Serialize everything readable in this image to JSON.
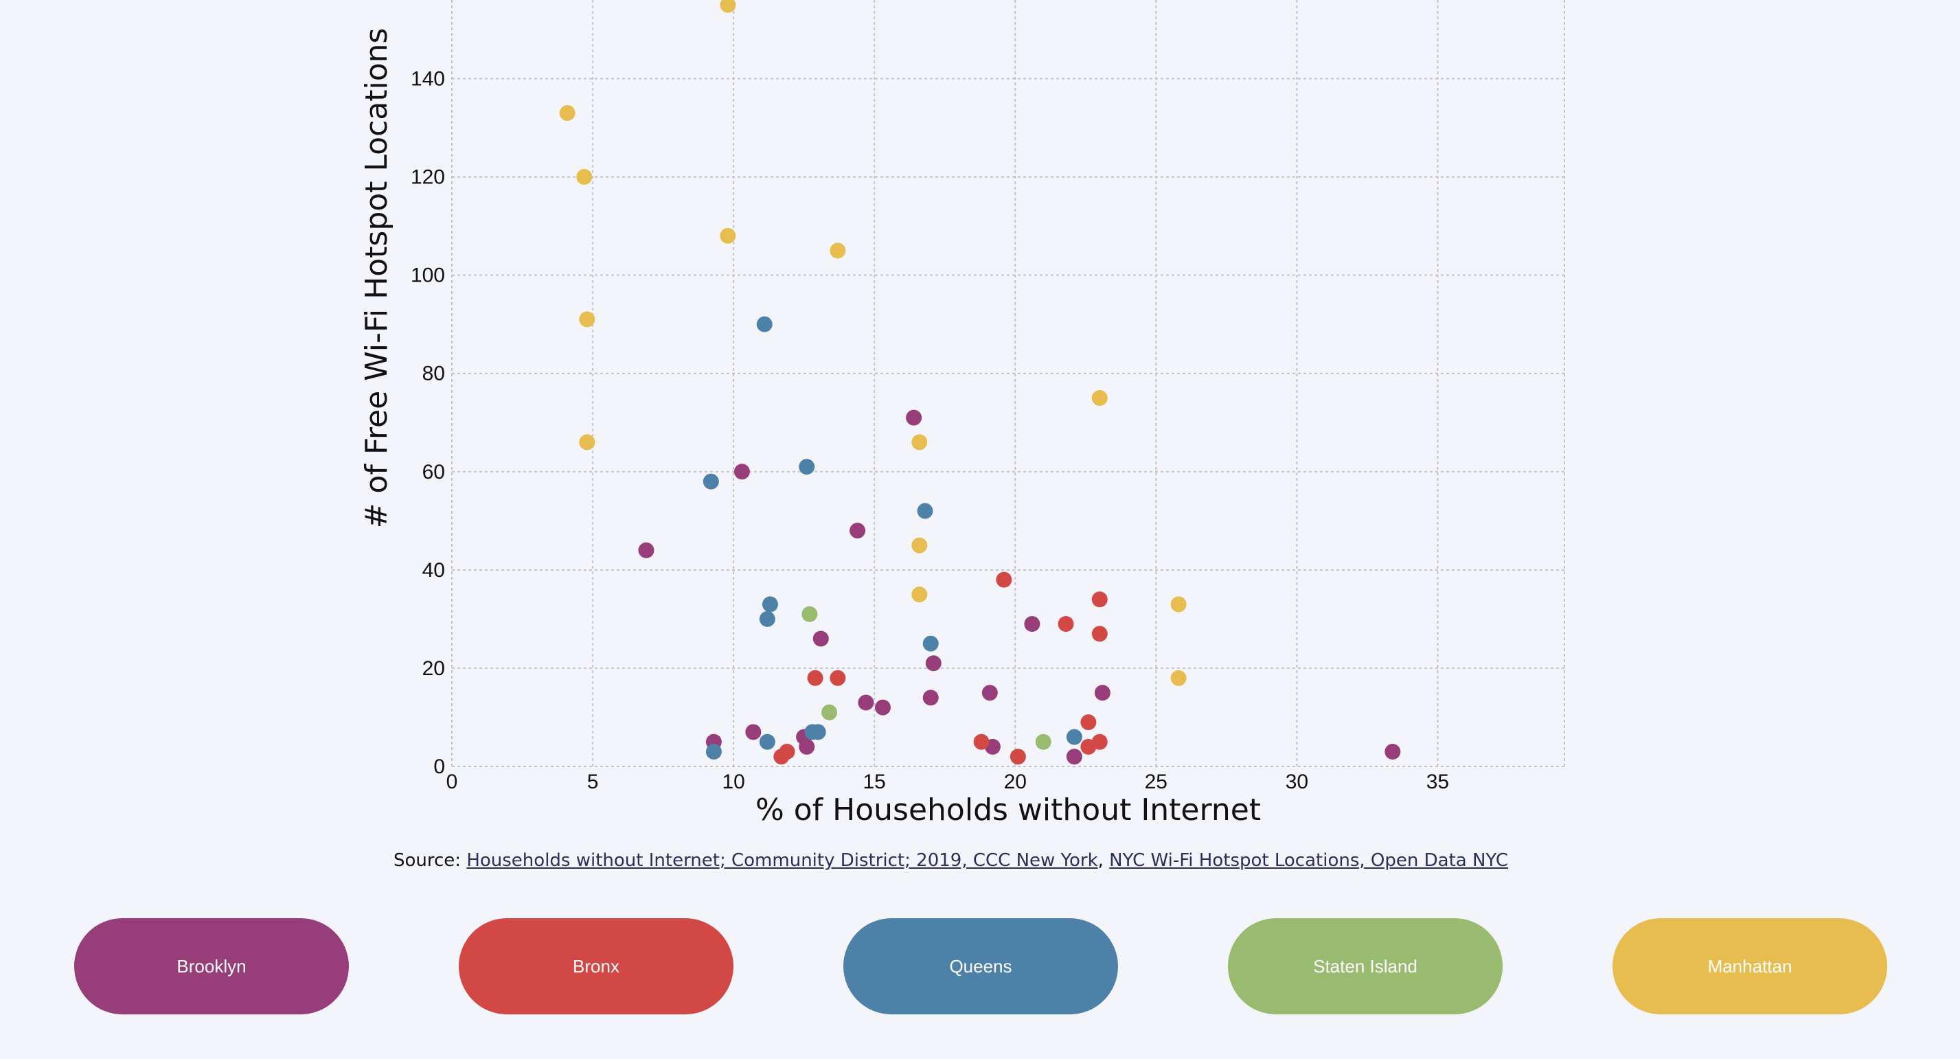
{
  "chart_data": {
    "type": "scatter",
    "xlabel": "% of Households without Internet",
    "ylabel": "# of Free Wi-Fi Hotspot Locations",
    "xlim": [
      0,
      39.5
    ],
    "ylim": [
      0,
      156
    ],
    "xticks": [
      0,
      5,
      10,
      15,
      20,
      25,
      30,
      35
    ],
    "yticks": [
      0,
      20,
      40,
      60,
      80,
      100,
      120,
      140
    ],
    "grid": true,
    "series": [
      {
        "name": "Brooklyn",
        "color": "#973d7a",
        "points": [
          [
            6.9,
            44
          ],
          [
            10.3,
            60
          ],
          [
            16.4,
            71
          ],
          [
            14.4,
            48
          ],
          [
            13.1,
            26
          ],
          [
            17.1,
            21
          ],
          [
            14.7,
            13
          ],
          [
            15.3,
            12
          ],
          [
            17.0,
            14
          ],
          [
            9.3,
            5
          ],
          [
            10.7,
            7
          ],
          [
            12.5,
            6
          ],
          [
            12.6,
            4
          ],
          [
            19.1,
            15
          ],
          [
            19.2,
            4
          ],
          [
            20.6,
            29
          ],
          [
            22.1,
            2
          ],
          [
            23.1,
            15
          ],
          [
            33.4,
            3
          ]
        ]
      },
      {
        "name": "Bronx",
        "color": "#d24845",
        "points": [
          [
            19.6,
            38
          ],
          [
            21.8,
            29
          ],
          [
            23.0,
            34
          ],
          [
            23.0,
            27
          ],
          [
            12.9,
            18
          ],
          [
            13.7,
            18
          ],
          [
            11.7,
            2
          ],
          [
            11.9,
            3
          ],
          [
            18.8,
            5
          ],
          [
            20.1,
            2
          ],
          [
            22.6,
            9
          ],
          [
            22.6,
            4
          ],
          [
            23.0,
            5
          ]
        ]
      },
      {
        "name": "Queens",
        "color": "#4d81a8",
        "points": [
          [
            11.1,
            90
          ],
          [
            9.2,
            58
          ],
          [
            12.6,
            61
          ],
          [
            16.8,
            52
          ],
          [
            11.3,
            33
          ],
          [
            11.2,
            30
          ],
          [
            17.0,
            25
          ],
          [
            9.3,
            3
          ],
          [
            11.2,
            5
          ],
          [
            12.8,
            7
          ],
          [
            13.0,
            7
          ],
          [
            22.1,
            6
          ]
        ]
      },
      {
        "name": "Staten Island",
        "color": "#98bb6f",
        "points": [
          [
            12.7,
            31
          ],
          [
            13.4,
            11
          ],
          [
            21.0,
            5
          ]
        ]
      },
      {
        "name": "Manhattan",
        "color": "#e8bd50",
        "points": [
          [
            9.8,
            155
          ],
          [
            4.1,
            133
          ],
          [
            4.7,
            120
          ],
          [
            9.8,
            108
          ],
          [
            13.7,
            105
          ],
          [
            4.8,
            91
          ],
          [
            4.8,
            66
          ],
          [
            16.6,
            66
          ],
          [
            23.0,
            75
          ],
          [
            16.6,
            45
          ],
          [
            16.6,
            35
          ],
          [
            25.8,
            33
          ],
          [
            25.8,
            18
          ]
        ]
      }
    ]
  },
  "source": {
    "prefix": "Source: ",
    "link1": "Households without Internet; Community District; 2019, CCC New York",
    "separator": ", ",
    "link2": "NYC Wi-Fi Hotspot Locations, Open Data NYC"
  },
  "legend": [
    {
      "label": "Brooklyn",
      "color": "#973d7a"
    },
    {
      "label": "Bronx",
      "color": "#d24845"
    },
    {
      "label": "Queens",
      "color": "#4d81a8"
    },
    {
      "label": "Staten Island",
      "color": "#98bb6f"
    },
    {
      "label": "Manhattan",
      "color": "#e8bd50"
    }
  ]
}
